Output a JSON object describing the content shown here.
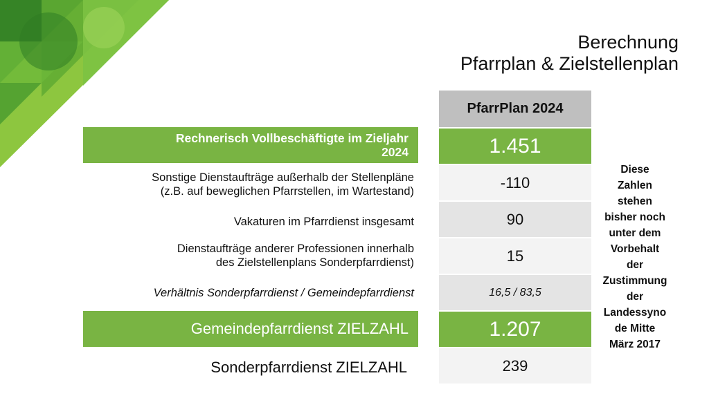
{
  "title": {
    "line1": "Berechnung",
    "line2": "Pfarrplan & Zielstellenplan"
  },
  "column_header": "PfarrPlan 2024",
  "rows": [
    {
      "label_lines": [
        "Rechnerisch Vollbeschäftigte im Zieljahr",
        "2024"
      ],
      "value": "1.451"
    },
    {
      "label_lines": [
        "Sonstige Dienstaufträge außerhalb der Stellenpläne",
        "(z.B. auf beweglichen Pfarrstellen, im Wartestand)"
      ],
      "value": "-110"
    },
    {
      "label_lines": [
        "Vakaturen im Pfarrdienst insgesamt"
      ],
      "value": "90"
    },
    {
      "label_lines": [
        "Dienstaufträge anderer Professionen innerhalb",
        "des Zielstellenplans Sonderpfarrdienst)"
      ],
      "value": "15"
    },
    {
      "label_lines": [
        "Verhältnis Sonderpfarrdienst / Gemeindepfarrdienst"
      ],
      "value": "16,5 / 83,5"
    },
    {
      "label_lines": [
        "Gemeindepfarrdienst ZIELZAHL"
      ],
      "value": "1.207"
    },
    {
      "label_lines": [
        "Sonderpfarrdienst ZIELZAHL"
      ],
      "value": "239"
    }
  ],
  "note_lines": [
    "Diese",
    "Zahlen",
    "stehen",
    "bisher noch",
    "unter dem",
    "Vorbehalt",
    "der",
    "Zustimmung",
    "der",
    "Landessyno",
    "de Mitte",
    "März 2017"
  ],
  "colors": {
    "accent_green": "#79b443",
    "header_gray": "#bfbfbf",
    "row_light": "#f3f3f3",
    "row_mid": "#e4e4e4"
  }
}
